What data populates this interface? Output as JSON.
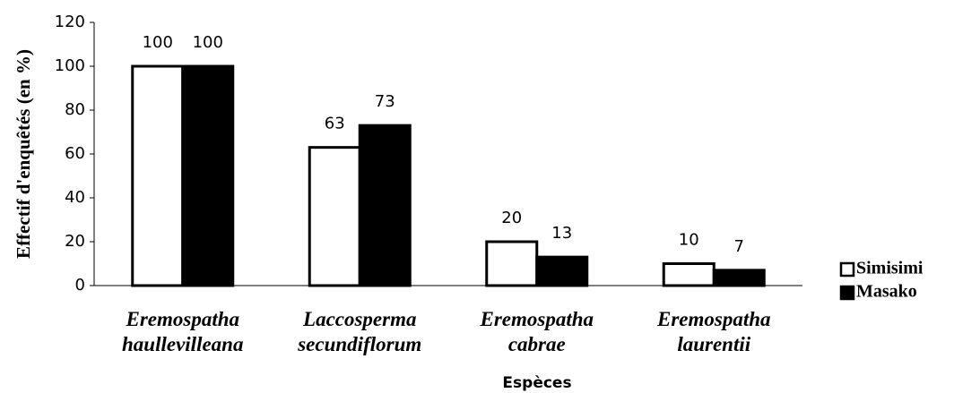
{
  "chart_data": {
    "type": "bar",
    "y_label": "Effectif d'enquêtés (en %)",
    "x_label": "Espèces",
    "categories": [
      "Eremospatha haullevilleana",
      "Laccosperma secundiflorum",
      "Eremospatha cabrae",
      "Eremospatha laurentii"
    ],
    "series": [
      {
        "name": "Simisimi",
        "color": "#ffffff",
        "values": [
          100,
          63,
          20,
          10
        ]
      },
      {
        "name": "Masako",
        "color": "#000000",
        "values": [
          100,
          73,
          13,
          7
        ]
      }
    ],
    "ylim": [
      0,
      120
    ],
    "yticks": [
      0,
      20,
      40,
      60,
      80,
      100,
      120
    ],
    "grid": false,
    "legend": "right"
  }
}
